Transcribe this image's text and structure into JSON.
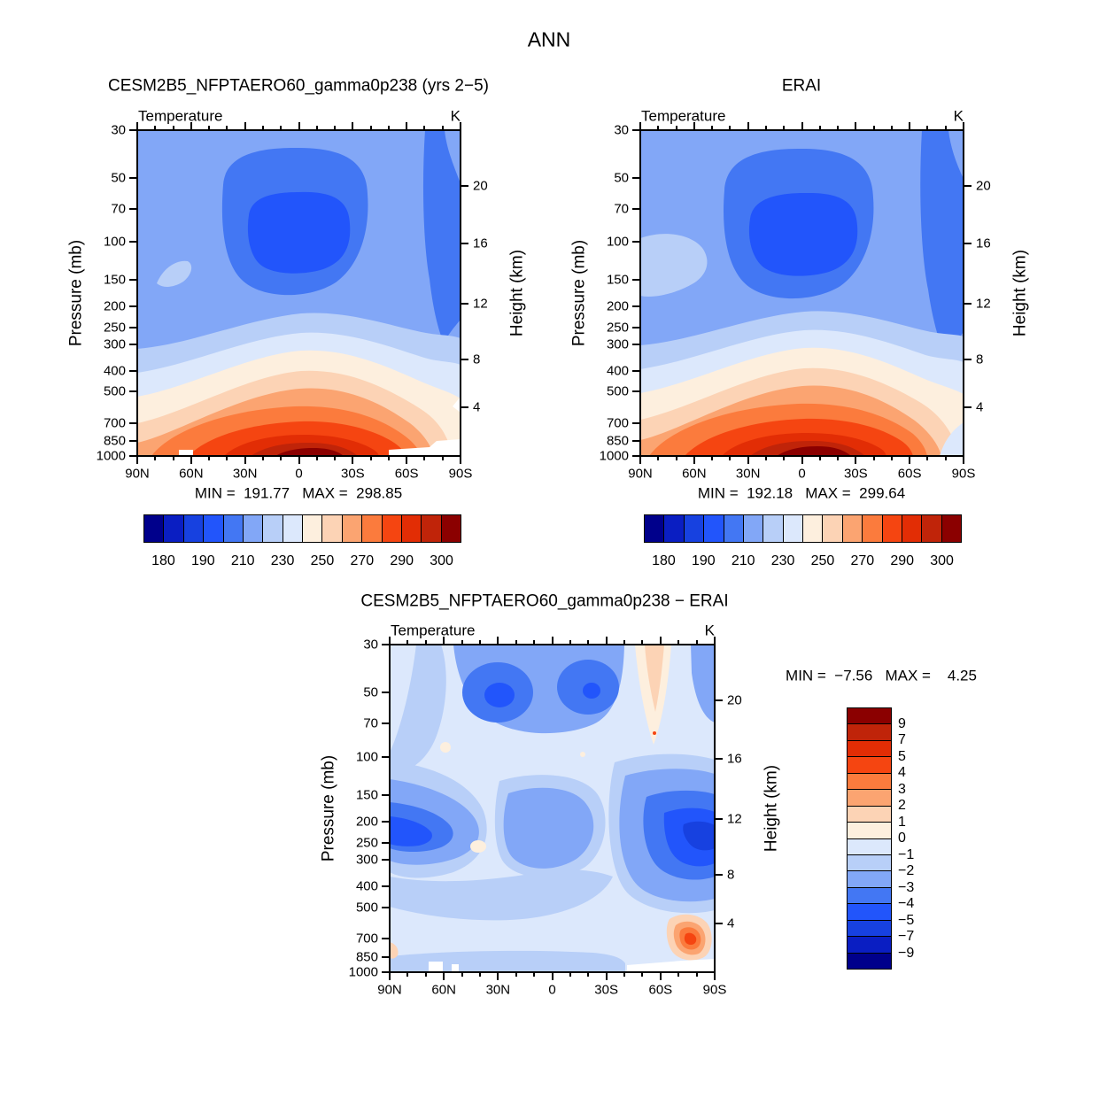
{
  "title": "ANN",
  "panels": [
    {
      "id": "model",
      "title": "CESM2B5_NFPTAERO60_gamma0p238 (yrs 2−5)",
      "field_label": "Temperature",
      "units_label": "K",
      "min": "191.77",
      "max": "298.85",
      "min_max_line": "MIN =  191.77   MAX =  298.85"
    },
    {
      "id": "erai",
      "title": "ERAI",
      "field_label": "Temperature",
      "units_label": "K",
      "min": "192.18",
      "max": "299.64",
      "min_max_line": "MIN =  192.18   MAX =  299.64"
    },
    {
      "id": "diff",
      "title": "CESM2B5_NFPTAERO60_gamma0p238 − ERAI",
      "field_label": "Temperature",
      "units_label": "K",
      "min": "−7.56",
      "max": "4.25",
      "min_max_line": "MIN =  −7.56   MAX =    4.25"
    }
  ],
  "axes": {
    "pressure_label": "Pressure (mb)",
    "height_label": "Height (km)",
    "pressure_ticks": [
      "30",
      "50",
      "70",
      "100",
      "150",
      "200",
      "250",
      "300",
      "400",
      "500",
      "700",
      "850",
      "1000"
    ],
    "height_ticks": [
      "20",
      "16",
      "12",
      "8",
      "4"
    ],
    "lat_ticks": [
      "90N",
      "60N",
      "30N",
      "0",
      "30S",
      "60S",
      "90S"
    ]
  },
  "cb_abs_labels": [
    "180",
    "190",
    "210",
    "230",
    "250",
    "270",
    "290",
    "300"
  ],
  "cb_diff_labels": [
    "9",
    "7",
    "5",
    "4",
    "3",
    "2",
    "1",
    "0",
    "−1",
    "−2",
    "−3",
    "−4",
    "−5",
    "−7",
    "−9"
  ],
  "palette": [
    "#00008B",
    "#0A1EC2",
    "#1741E0",
    "#2255FB",
    "#4377F3",
    "#82A7F7",
    "#B8CFF8",
    "#DCE8FC",
    "#FDEFDE",
    "#FCD3B5",
    "#FBA471",
    "#FB7B3D",
    "#F54511",
    "#E22D05",
    "#C02409",
    "#8B0000"
  ],
  "chart_data": [
    {
      "type": "heatmap",
      "subtype": "filled-contour latitude-pressure section",
      "title": "CESM2B5_NFPTAERO60_gamma0p238 (yrs 2−5)",
      "variable": "Temperature",
      "units": "K",
      "min": 191.77,
      "max": 298.85,
      "x_axis": {
        "ticks": [
          "90N",
          "60N",
          "30N",
          "0",
          "30S",
          "60S",
          "90S"
        ],
        "range": [
          "90N",
          "90S"
        ]
      },
      "y_axis": {
        "label": "Pressure (mb)",
        "scale": "log",
        "ticks": [
          30,
          50,
          70,
          100,
          150,
          200,
          250,
          300,
          400,
          500,
          700,
          850,
          1000
        ],
        "range": [
          30,
          1000
        ]
      },
      "y2_axis": {
        "label": "Height (km)",
        "ticks": [
          20,
          16,
          12,
          8,
          4
        ]
      },
      "contour_levels": [
        180,
        185,
        190,
        200,
        210,
        220,
        230,
        240,
        250,
        260,
        270,
        280,
        290,
        295,
        300
      ],
      "colorbar_labels": [
        180,
        190,
        210,
        230,
        250,
        270,
        290,
        300
      ],
      "legend_position": "below",
      "grid": false
    },
    {
      "type": "heatmap",
      "subtype": "filled-contour latitude-pressure section",
      "title": "ERAI",
      "variable": "Temperature",
      "units": "K",
      "min": 192.18,
      "max": 299.64,
      "x_axis": {
        "ticks": [
          "90N",
          "60N",
          "30N",
          "0",
          "30S",
          "60S",
          "90S"
        ],
        "range": [
          "90N",
          "90S"
        ]
      },
      "y_axis": {
        "label": "Pressure (mb)",
        "scale": "log",
        "ticks": [
          30,
          50,
          70,
          100,
          150,
          200,
          250,
          300,
          400,
          500,
          700,
          850,
          1000
        ],
        "range": [
          30,
          1000
        ]
      },
      "y2_axis": {
        "label": "Height (km)",
        "ticks": [
          20,
          16,
          12,
          8,
          4
        ]
      },
      "contour_levels": [
        180,
        185,
        190,
        200,
        210,
        220,
        230,
        240,
        250,
        260,
        270,
        280,
        290,
        295,
        300
      ],
      "colorbar_labels": [
        180,
        190,
        210,
        230,
        250,
        270,
        290,
        300
      ],
      "legend_position": "below",
      "grid": false
    },
    {
      "type": "heatmap",
      "subtype": "filled-contour difference section",
      "title": "CESM2B5_NFPTAERO60_gamma0p238 − ERAI",
      "variable": "Temperature difference",
      "units": "K",
      "min": -7.56,
      "max": 4.25,
      "x_axis": {
        "ticks": [
          "90N",
          "60N",
          "30N",
          "0",
          "30S",
          "60S",
          "90S"
        ],
        "range": [
          "90N",
          "90S"
        ]
      },
      "y_axis": {
        "label": "Pressure (mb)",
        "scale": "log",
        "ticks": [
          30,
          50,
          70,
          100,
          150,
          200,
          250,
          300,
          400,
          500,
          700,
          850,
          1000
        ],
        "range": [
          30,
          1000
        ]
      },
      "y2_axis": {
        "label": "Height (km)",
        "ticks": [
          20,
          16,
          12,
          8,
          4
        ]
      },
      "contour_levels": [
        -9,
        -7,
        -5,
        -4,
        -3,
        -2,
        -1,
        0,
        1,
        2,
        3,
        4,
        5,
        7,
        9
      ],
      "colorbar_labels": [
        9,
        7,
        5,
        4,
        3,
        2,
        1,
        0,
        -1,
        -2,
        -3,
        -4,
        -5,
        -7,
        -9
      ],
      "legend_position": "right-vertical",
      "grid": false
    }
  ]
}
